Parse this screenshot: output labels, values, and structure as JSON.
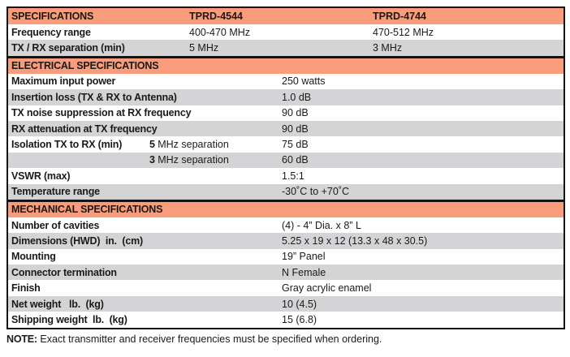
{
  "colors": {
    "accent_salmon": "#f99c7c",
    "row_gray": "#d4d4d6",
    "border_black": "#141414"
  },
  "table": {
    "header": {
      "col1": "SPECIFICATIONS",
      "col2": "TPRD-4544",
      "col3": "TPRD-4744"
    },
    "top_rows": [
      {
        "label": "Frequency range",
        "val1": "400-470 MHz",
        "val2": "470-512 MHz"
      },
      {
        "label": "TX / RX separation (min)",
        "val1": "5 MHz",
        "val2": "3 MHz"
      }
    ],
    "electrical": {
      "title": "ELECTRICAL SPECIFICATIONS",
      "rows": [
        {
          "label": "Maximum input power",
          "value": "250 watts"
        },
        {
          "label": "Insertion loss (TX & RX to Antenna)",
          "value": "1.0 dB"
        },
        {
          "label": "TX noise suppression at RX frequency",
          "value": "90 dB"
        },
        {
          "label": "RX attenuation at TX frequency",
          "value": "90 dB"
        },
        {
          "label": "Isolation TX to RX (min)",
          "sub_num": "5",
          "sub_text": " MHz separation",
          "value": "75 dB"
        },
        {
          "label": "",
          "sub_num": "3",
          "sub_text": " MHz separation",
          "value": "60 dB"
        },
        {
          "label": "VSWR (max)",
          "value": "1.5:1"
        },
        {
          "label": "Temperature range",
          "value": "-30˚C to +70˚C"
        }
      ]
    },
    "mechanical": {
      "title": "MECHANICAL SPECIFICATIONS",
      "rows": [
        {
          "label": "Number of cavities",
          "value": "(4) - 4” Dia. x 8” L"
        },
        {
          "label": "Dimensions (HWD)  in.  (cm)",
          "value": "5.25 x 19 x 12 (13.3 x 48 x 30.5)"
        },
        {
          "label": "Mounting",
          "value": "19” Panel"
        },
        {
          "label": "Connector termination",
          "value": "N Female"
        },
        {
          "label": "Finish",
          "value": "Gray acrylic enamel"
        },
        {
          "label": "Net weight   lb.  (kg)",
          "value": "10 (4.5)"
        },
        {
          "label": "Shipping weight  lb.  (kg)",
          "value": "15 (6.8)"
        }
      ]
    }
  },
  "note": {
    "prefix": "NOTE:",
    "text": " Exact transmitter and receiver frequencies must be specified when ordering."
  }
}
